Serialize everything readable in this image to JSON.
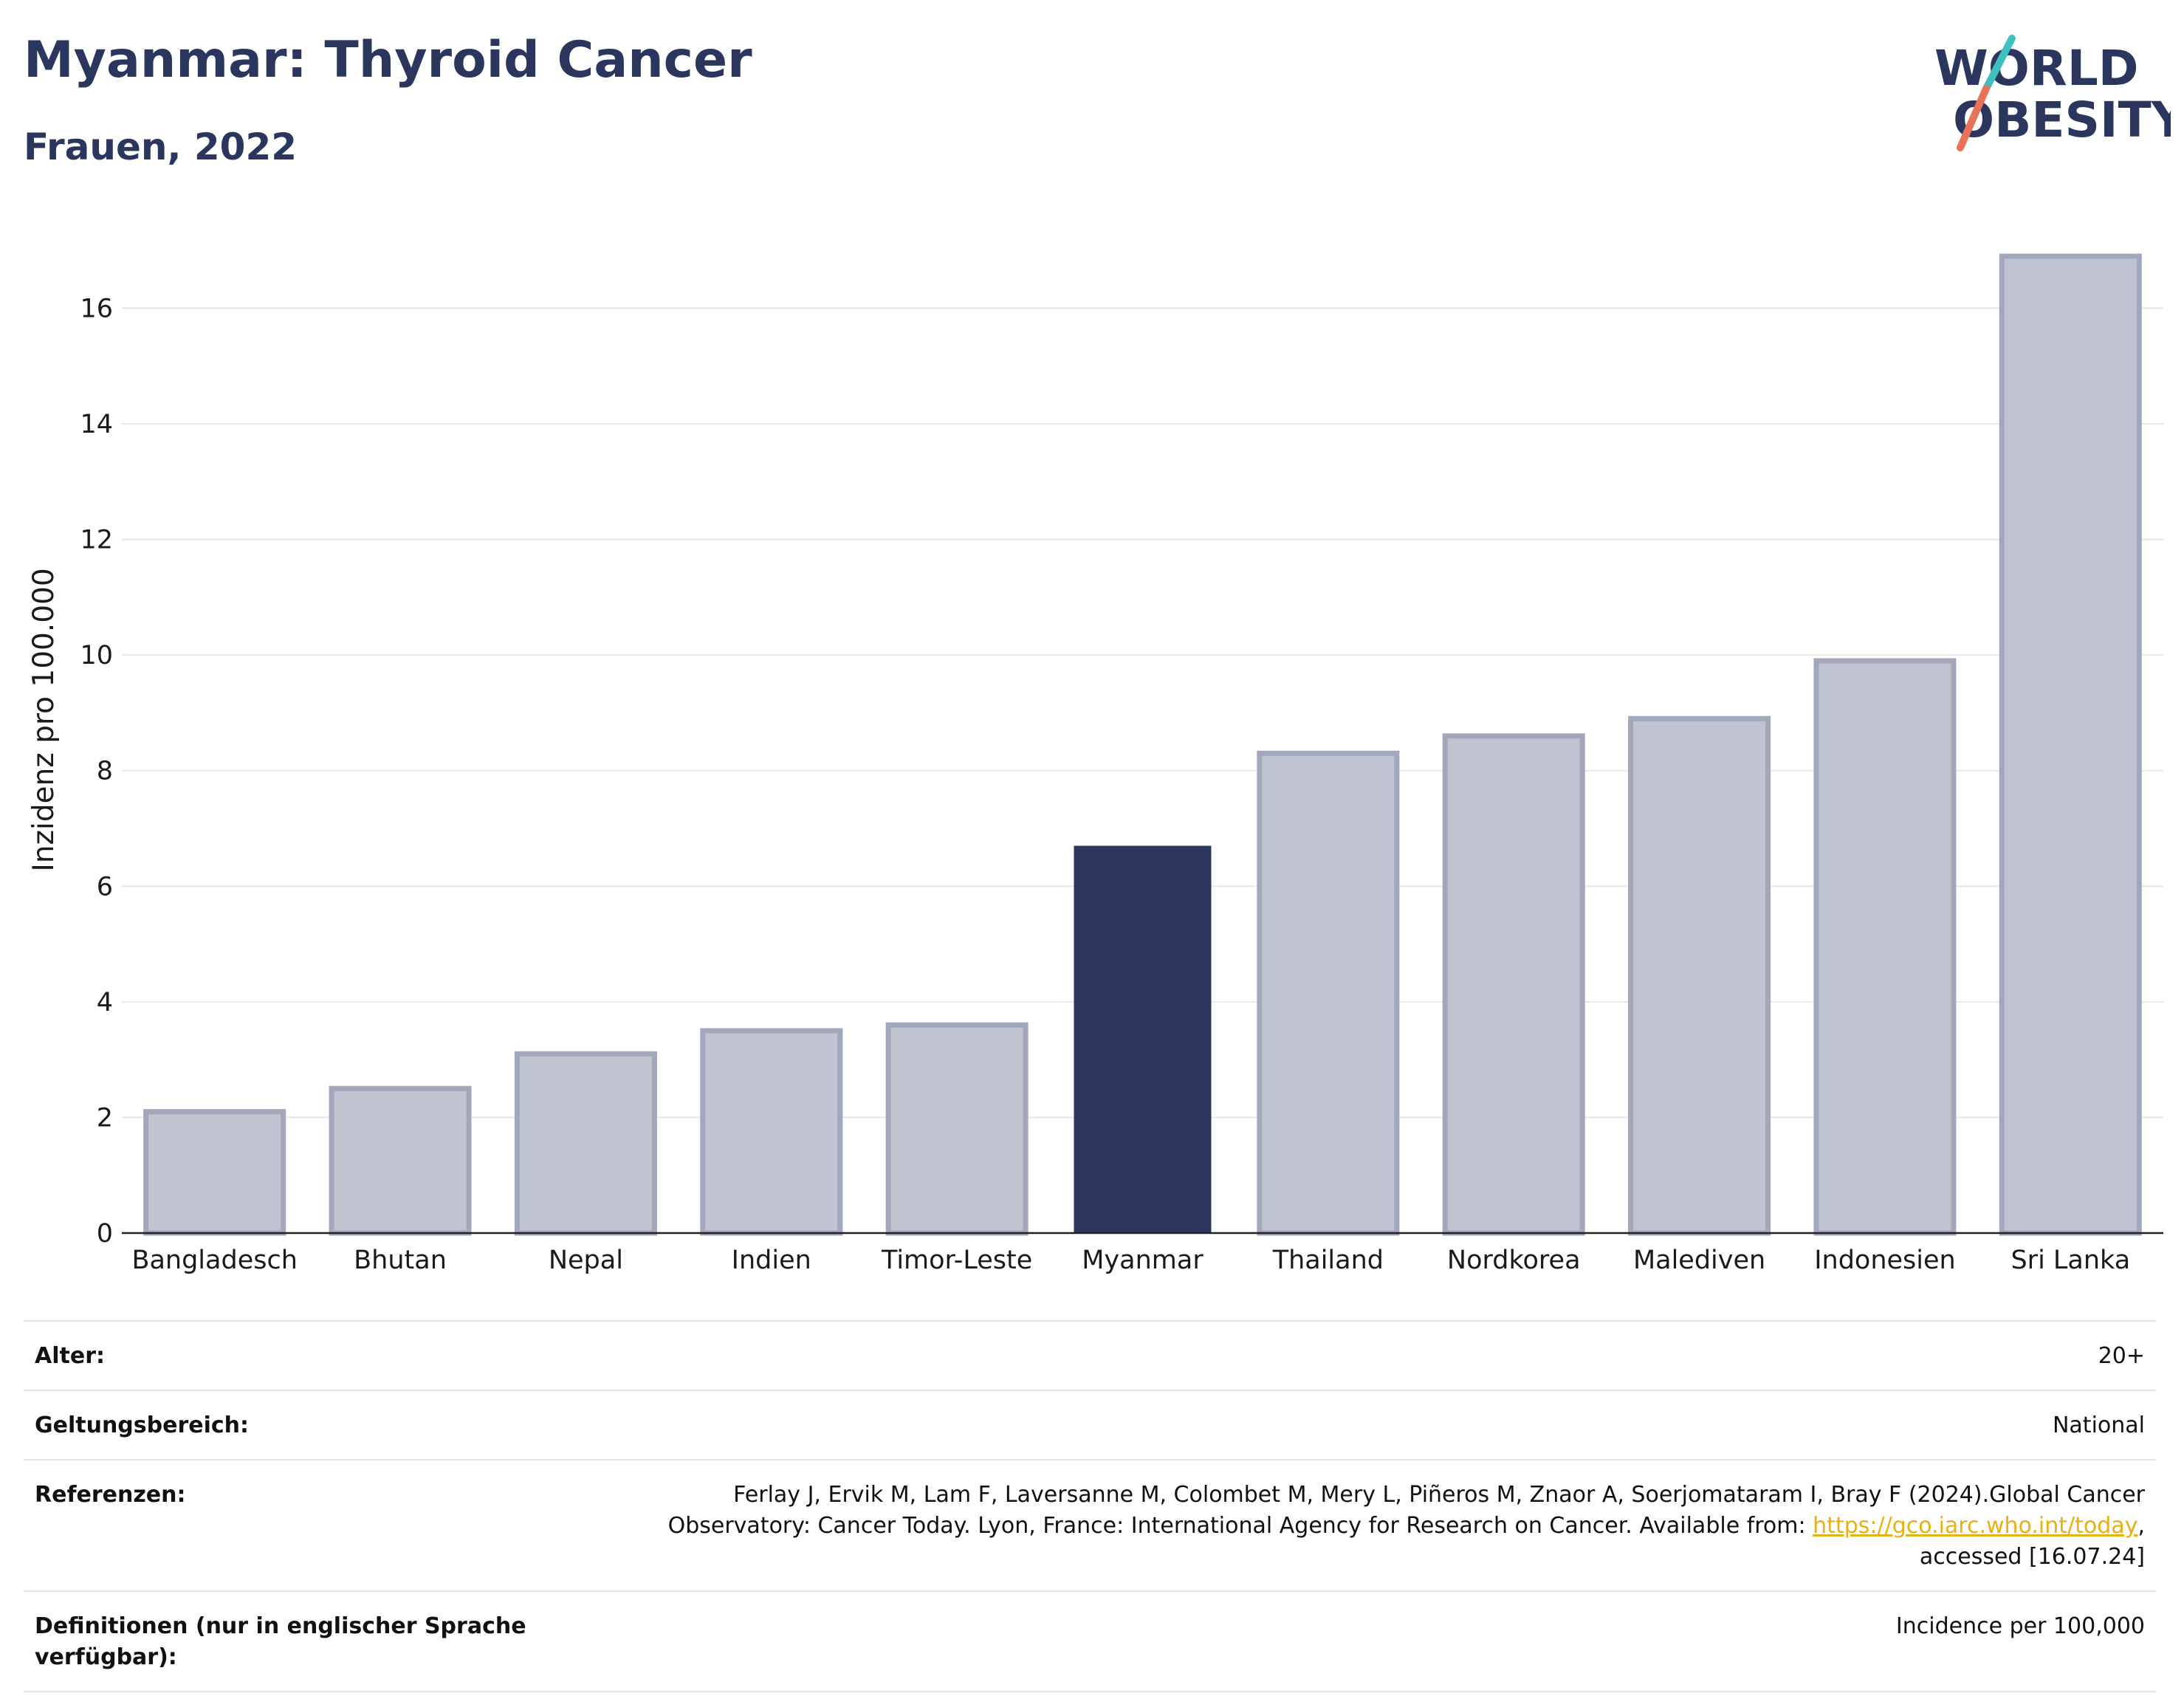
{
  "header": {
    "title": "Myanmar: Thyroid Cancer",
    "subtitle": "Frauen, 2022"
  },
  "logo": {
    "line1": "WORLD",
    "line2": "OBESITY",
    "colors": {
      "text": "#2b365f",
      "slash_top": "#3fbfbf",
      "slash_bottom": "#e8735a"
    }
  },
  "chart_data": {
    "type": "bar",
    "title": "Myanmar: Thyroid Cancer",
    "subtitle": "Frauen, 2022",
    "xlabel": "",
    "ylabel": "Inzidenz pro 100.000",
    "categories": [
      "Bangladesch",
      "Bhutan",
      "Nepal",
      "Indien",
      "Timor-Leste",
      "Myanmar",
      "Thailand",
      "Nordkorea",
      "Malediven",
      "Indonesien",
      "Sri Lanka"
    ],
    "values": [
      2.1,
      2.5,
      3.1,
      3.5,
      3.6,
      6.7,
      8.3,
      8.6,
      8.9,
      9.9,
      16.9
    ],
    "highlight": "Myanmar",
    "ylim": [
      0,
      17.5
    ],
    "yticks": [
      0,
      2,
      4,
      6,
      8,
      10,
      12,
      14,
      16
    ],
    "grid": true,
    "colors": {
      "bar": "#c0c3d0",
      "bar_border": "#a2a7bb",
      "highlight": "#2b365f",
      "grid": "#e8e8e8"
    }
  },
  "info": {
    "rows": [
      {
        "label": "Alter:",
        "value": "20+"
      },
      {
        "label": "Geltungsbereich:",
        "value": "National"
      },
      {
        "label": "Referenzen:",
        "value_pre": "Ferlay J, Ervik M, Lam F, Laversanne M, Colombet M, Mery L, Piñeros M, Znaor A, Soerjomataram I, Bray F (2024).Global Cancer Observatory: Cancer Today. Lyon, France: International Agency for Research on Cancer. Available from: ",
        "link": "https://gco.iarc.who.int/today",
        "value_post": ", accessed [16.07.24]"
      },
      {
        "label": "Definitionen (nur in englischer Sprache verfügbar):",
        "value": "Incidence per 100,000"
      }
    ]
  }
}
